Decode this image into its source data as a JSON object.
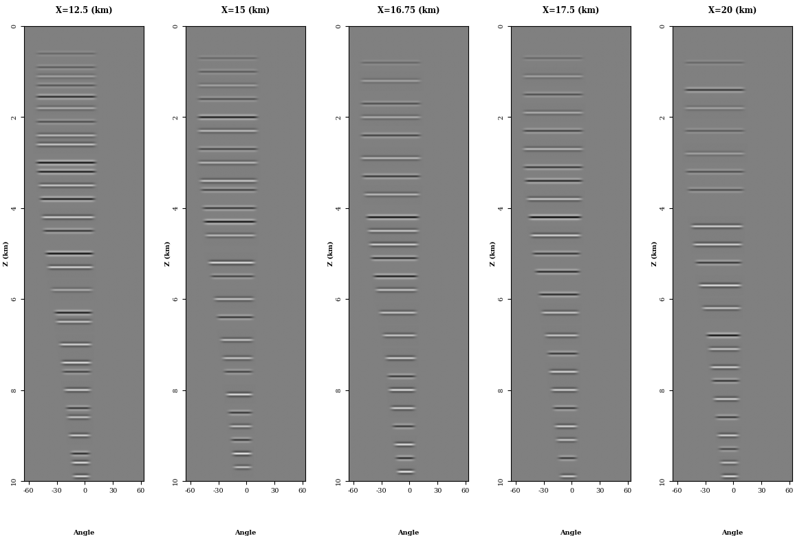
{
  "chart_data": [
    {
      "type": "heatmap",
      "title": "X=12.5 (km)",
      "x_label": "Angle",
      "y_label": "Z (km)",
      "xlim": [
        -65,
        63
      ],
      "ylim": [
        10,
        0
      ],
      "xticks": [
        -60,
        -30,
        0,
        30,
        60
      ],
      "yticks": [
        0,
        2,
        4,
        6,
        8,
        10
      ],
      "clim": [
        -1,
        1
      ],
      "color": "gray",
      "reflectors": {
        "z": [
          0.6,
          0.9,
          1.1,
          1.3,
          1.55,
          1.8,
          2.1,
          2.4,
          2.6,
          3.0,
          3.2,
          3.5,
          3.8,
          4.2,
          4.5,
          5.0,
          5.3,
          5.8,
          6.3,
          6.5,
          7.0,
          7.4,
          7.6,
          8.0,
          8.4,
          8.6,
          9.0,
          9.4,
          9.6,
          9.9
        ],
        "amplitude": [
          -0.2,
          -0.3,
          0.3,
          -0.35,
          -0.7,
          0.4,
          -0.4,
          0.5,
          0.6,
          -0.9,
          -0.8,
          0.6,
          -0.8,
          0.7,
          -0.6,
          -0.9,
          0.7,
          0.4,
          -0.8,
          0.6,
          0.7,
          0.8,
          -0.5,
          0.7,
          -0.6,
          0.6,
          0.7,
          -0.7,
          0.8,
          0.8
        ]
      },
      "aperture": {
        "z": [
          0,
          3,
          5,
          7,
          10
        ],
        "min": [
          -55,
          -55,
          -45,
          -30,
          -15
        ],
        "max": [
          15,
          15,
          12,
          10,
          8
        ]
      }
    },
    {
      "type": "heatmap",
      "title": "X=15 (km)",
      "x_label": "Angle",
      "y_label": "Z (km)",
      "xlim": [
        -65,
        63
      ],
      "ylim": [
        10,
        0
      ],
      "xticks": [
        -60,
        -30,
        0,
        30,
        60
      ],
      "yticks": [
        0,
        2,
        4,
        6,
        8,
        10
      ],
      "clim": [
        -1,
        1
      ],
      "color": "gray",
      "reflectors": {
        "z": [
          0.7,
          1.0,
          1.3,
          1.6,
          2.0,
          2.3,
          2.7,
          3.0,
          3.4,
          3.6,
          4.0,
          4.3,
          4.6,
          5.2,
          5.5,
          6.0,
          6.4,
          6.9,
          7.3,
          7.6,
          8.1,
          8.5,
          8.8,
          9.1,
          9.4,
          9.7
        ],
        "amplitude": [
          -0.2,
          -0.3,
          0.3,
          -0.4,
          -0.8,
          0.5,
          -0.5,
          0.5,
          0.6,
          -0.5,
          -0.6,
          -0.9,
          0.5,
          0.8,
          -0.5,
          0.6,
          -0.6,
          0.6,
          0.6,
          -0.5,
          0.8,
          -0.6,
          0.6,
          -0.6,
          0.9,
          0.6
        ]
      },
      "aperture": {
        "z": [
          0,
          3,
          5,
          7,
          10
        ],
        "min": [
          -55,
          -55,
          -45,
          -30,
          -15
        ],
        "max": [
          15,
          15,
          12,
          10,
          8
        ]
      }
    },
    {
      "type": "heatmap",
      "title": "X=16.75 (km)",
      "x_label": "Angle",
      "y_label": "Z (km)",
      "xlim": [
        -65,
        63
      ],
      "ylim": [
        10,
        0
      ],
      "xticks": [
        -60,
        -30,
        0,
        30,
        60
      ],
      "yticks": [
        0,
        2,
        4,
        6,
        8,
        10
      ],
      "clim": [
        -1,
        1
      ],
      "color": "gray",
      "reflectors": {
        "z": [
          0.8,
          1.2,
          1.7,
          2.0,
          2.4,
          2.9,
          3.3,
          3.7,
          4.2,
          4.5,
          4.8,
          5.1,
          5.5,
          5.8,
          6.3,
          6.8,
          7.3,
          7.7,
          8.0,
          8.4,
          8.8,
          9.2,
          9.5,
          9.8
        ],
        "amplitude": [
          -0.2,
          0.3,
          -0.4,
          0.4,
          -0.5,
          0.5,
          -0.6,
          0.5,
          -0.9,
          0.6,
          0.7,
          -0.7,
          -0.8,
          0.6,
          0.6,
          0.6,
          0.7,
          -0.6,
          0.8,
          0.7,
          -0.6,
          0.8,
          -0.7,
          0.9
        ]
      },
      "aperture": {
        "z": [
          0,
          3,
          5,
          7,
          10
        ],
        "min": [
          -55,
          -55,
          -45,
          -30,
          -15
        ],
        "max": [
          15,
          15,
          12,
          10,
          8
        ]
      }
    },
    {
      "type": "heatmap",
      "title": "X=17.5 (km)",
      "x_label": "Angle",
      "y_label": "Z (km)",
      "xlim": [
        -65,
        63
      ],
      "ylim": [
        10,
        0
      ],
      "xticks": [
        -60,
        -30,
        0,
        30,
        60
      ],
      "yticks": [
        0,
        2,
        4,
        6,
        8,
        10
      ],
      "clim": [
        -1,
        1
      ],
      "color": "gray",
      "reflectors": {
        "z": [
          0.7,
          1.1,
          1.5,
          1.9,
          2.3,
          2.7,
          3.1,
          3.4,
          3.8,
          4.2,
          4.6,
          5.0,
          5.4,
          5.9,
          6.3,
          6.8,
          7.2,
          7.6,
          8.0,
          8.4,
          8.8,
          9.1,
          9.5,
          9.9
        ],
        "amplitude": [
          -0.2,
          0.3,
          -0.4,
          0.4,
          -0.5,
          0.5,
          -0.6,
          -0.7,
          0.6,
          -1.0,
          0.7,
          -0.6,
          -0.7,
          -0.7,
          0.6,
          0.6,
          -0.6,
          0.7,
          0.7,
          -0.6,
          0.7,
          0.6,
          -0.6,
          0.7
        ]
      },
      "aperture": {
        "z": [
          0,
          3,
          5,
          7,
          10
        ],
        "min": [
          -55,
          -55,
          -45,
          -30,
          -15
        ],
        "max": [
          15,
          15,
          12,
          10,
          8
        ]
      }
    },
    {
      "type": "heatmap",
      "title": "X=20 (km)",
      "x_label": "Angle",
      "y_label": "Z (km)",
      "xlim": [
        -65,
        63
      ],
      "ylim": [
        10,
        0
      ],
      "xticks": [
        -60,
        -30,
        0,
        30,
        60
      ],
      "yticks": [
        0,
        2,
        4,
        6,
        8,
        10
      ],
      "clim": [
        -1,
        1
      ],
      "color": "gray",
      "reflectors": {
        "z": [
          0.8,
          1.4,
          1.8,
          2.3,
          2.8,
          3.2,
          3.6,
          4.4,
          4.8,
          5.2,
          5.7,
          6.2,
          6.8,
          7.1,
          7.5,
          7.8,
          8.2,
          8.6,
          9.0,
          9.3,
          9.6,
          9.9
        ],
        "amplitude": [
          -0.2,
          -0.6,
          0.3,
          -0.3,
          0.3,
          -0.4,
          -0.4,
          0.7,
          0.7,
          -0.6,
          0.8,
          0.6,
          -0.9,
          0.6,
          0.7,
          -0.6,
          0.7,
          -0.6,
          0.7,
          -0.5,
          0.6,
          0.8
        ]
      },
      "aperture": {
        "z": [
          0,
          3,
          5,
          7,
          10
        ],
        "min": [
          -55,
          -55,
          -45,
          -30,
          -15
        ],
        "max": [
          15,
          15,
          12,
          10,
          8
        ]
      }
    }
  ]
}
